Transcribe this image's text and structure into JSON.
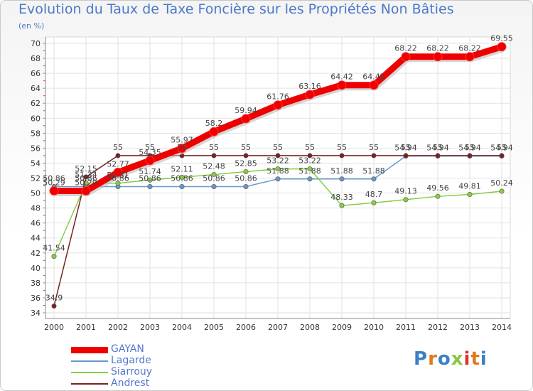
{
  "chart_data": {
    "type": "line",
    "title": "Evolution du Taux de Taxe Foncière sur les Propriétés Non Bâties",
    "ylabel": "(en %)",
    "xlabel": "",
    "x": [
      2000,
      2001,
      2002,
      2003,
      2004,
      2005,
      2006,
      2007,
      2008,
      2009,
      2010,
      2011,
      2012,
      2013,
      2014
    ],
    "ylim": [
      34,
      70
    ],
    "yticks": [
      34,
      36,
      38,
      40,
      42,
      44,
      46,
      48,
      50,
      52,
      54,
      56,
      58,
      60,
      62,
      64,
      66,
      68,
      70
    ],
    "grid": true,
    "legend_position": "bottom-left",
    "series": [
      {
        "name": "GAYAN",
        "color": "#ee0000",
        "labels": [
          "50.29",
          "50.29",
          "52.77",
          "54.35",
          "55.97",
          "58.2",
          "59.94",
          "61.76",
          "63.16",
          "64.42",
          "64.42",
          "68.22",
          "68.22",
          "68.22",
          "69.55"
        ],
        "values": [
          50.29,
          50.29,
          52.77,
          54.35,
          55.97,
          58.2,
          59.94,
          61.76,
          63.16,
          64.42,
          64.42,
          68.22,
          68.22,
          68.22,
          69.55
        ]
      },
      {
        "name": "Lagarde",
        "color": "#6699cc",
        "labels": [
          "50.86",
          "50.86",
          "50.86",
          "50.86",
          "50.86",
          "50.86",
          "50.86",
          "51.88",
          "51.88",
          "51.88",
          "51.88",
          "54.94",
          "54.94",
          "54.94",
          "54.94"
        ],
        "values": [
          50.86,
          50.86,
          50.86,
          50.86,
          50.86,
          50.86,
          50.86,
          51.88,
          51.88,
          51.88,
          51.88,
          54.94,
          54.94,
          54.94,
          54.94
        ]
      },
      {
        "name": "Siarrouy",
        "color": "#88cc44",
        "labels": [
          "41.54",
          "51.34",
          "51.31",
          "51.74",
          "52.11",
          "52.48",
          "52.85",
          "53.22",
          "53.22",
          "48.33",
          "48.7",
          "49.13",
          "49.56",
          "49.81",
          "50.24"
        ],
        "values": [
          41.54,
          51.34,
          51.31,
          51.74,
          52.11,
          52.48,
          52.85,
          53.22,
          53.22,
          48.33,
          48.7,
          49.13,
          49.56,
          49.81,
          50.24
        ]
      },
      {
        "name": "Andrest",
        "color": "#772222",
        "labels": [
          "34.9",
          "52.15",
          "55",
          "55",
          "55",
          "55",
          "55",
          "55",
          "55",
          "55",
          "55",
          "55",
          "55",
          "55",
          "55"
        ],
        "values": [
          34.9,
          52.15,
          55,
          55,
          55,
          55,
          55,
          55,
          55,
          55,
          55,
          55,
          55,
          55,
          55
        ]
      }
    ]
  },
  "logo": {
    "letters": [
      "P",
      "r",
      "o",
      "x",
      "i",
      "t",
      "i"
    ]
  }
}
